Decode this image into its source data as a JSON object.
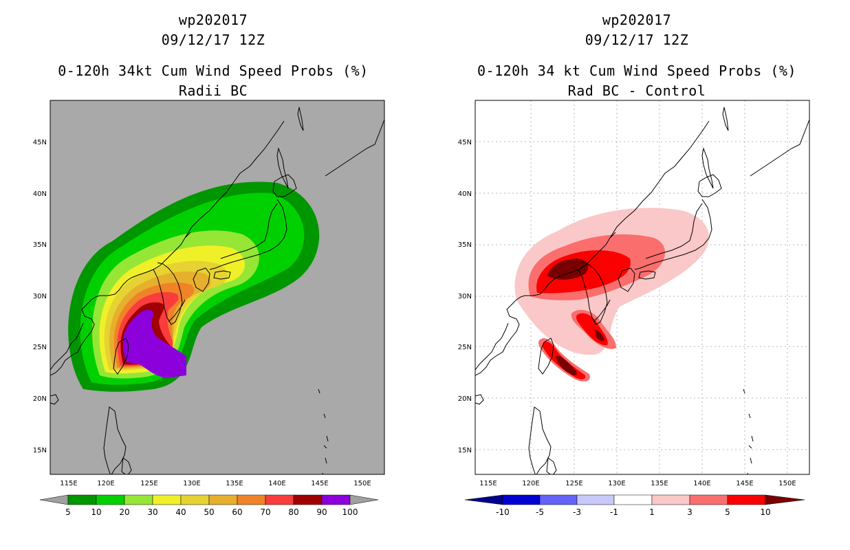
{
  "left": {
    "title_lines": [
      "wp202017",
      "09/12/17 12Z",
      "0-120h 34kt Cum Wind Speed Probs (%)",
      "Radii BC"
    ],
    "lon_labels": [
      "115E",
      "120E",
      "125E",
      "130E",
      "135E",
      "140E",
      "145E",
      "150E"
    ],
    "lat_labels": [
      "45N",
      "40N",
      "35N",
      "30N",
      "25N",
      "20N",
      "15N"
    ],
    "colorbar": {
      "labels": [
        "5",
        "10",
        "20",
        "30",
        "40",
        "50",
        "60",
        "70",
        "80",
        "90",
        "100"
      ],
      "colors": [
        "#009600",
        "#00d000",
        "#96e636",
        "#f0f028",
        "#e6d232",
        "#e6af2d",
        "#f08228",
        "#fa3c3c",
        "#a00000",
        "#8c00dc"
      ],
      "end_color": "#a0a0a0"
    }
  },
  "right": {
    "title_lines": [
      "wp202017",
      "09/12/17 12Z",
      "0-120h 34 kt Cum Wind Speed Probs (%)",
      "Rad BC - Control"
    ],
    "lon_labels": [
      "115E",
      "120E",
      "125E",
      "130E",
      "135E",
      "140E",
      "145E",
      "150E"
    ],
    "lat_labels": [
      "45N",
      "40N",
      "35N",
      "30N",
      "25N",
      "20N",
      "15N"
    ],
    "colorbar": {
      "labels": [
        "-10",
        "-5",
        "-3",
        "-1",
        "1",
        "3",
        "5",
        "10"
      ],
      "colors": [
        "#0000d2",
        "#6464fa",
        "#c8c8fa",
        "#ffffff",
        "#fac8c8",
        "#fa6e6e",
        "#fa0000"
      ],
      "low_color": "#00008c",
      "high_color": "#780000"
    }
  }
}
